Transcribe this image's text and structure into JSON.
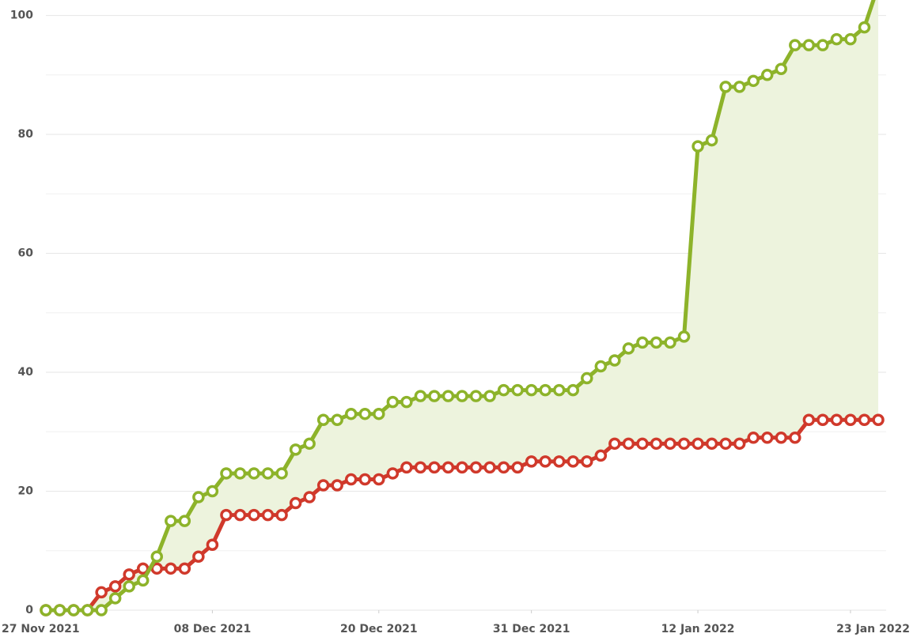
{
  "chart_data": {
    "type": "line",
    "x": [
      "2021-11-26",
      "2021-11-27",
      "2021-11-28",
      "2021-11-29",
      "2021-11-30",
      "2021-12-01",
      "2021-12-02",
      "2021-12-03",
      "2021-12-04",
      "2021-12-05",
      "2021-12-06",
      "2021-12-07",
      "2021-12-08",
      "2021-12-09",
      "2021-12-10",
      "2021-12-11",
      "2021-12-12",
      "2021-12-13",
      "2021-12-14",
      "2021-12-15",
      "2021-12-16",
      "2021-12-17",
      "2021-12-18",
      "2021-12-19",
      "2021-12-20",
      "2021-12-21",
      "2021-12-22",
      "2021-12-23",
      "2021-12-24",
      "2021-12-25",
      "2021-12-26",
      "2021-12-27",
      "2021-12-28",
      "2021-12-29",
      "2021-12-30",
      "2021-12-31",
      "2022-01-01",
      "2022-01-02",
      "2022-01-03",
      "2022-01-04",
      "2022-01-05",
      "2022-01-06",
      "2022-01-07",
      "2022-01-08",
      "2022-01-09",
      "2022-01-10",
      "2022-01-11",
      "2022-01-12",
      "2022-01-13",
      "2022-01-14",
      "2022-01-15",
      "2022-01-16",
      "2022-01-17",
      "2022-01-18",
      "2022-01-19",
      "2022-01-20",
      "2022-01-21",
      "2022-01-22",
      "2022-01-23",
      "2022-01-24",
      "2022-01-25"
    ],
    "series": [
      {
        "color": "#8db32a",
        "values": [
          0,
          0,
          0,
          0,
          0,
          2,
          4,
          5,
          9,
          15,
          15,
          19,
          20,
          23,
          23,
          23,
          23,
          23,
          27,
          28,
          32,
          32,
          33,
          33,
          33,
          35,
          35,
          36,
          36,
          36,
          36,
          36,
          36,
          37,
          37,
          37,
          37,
          37,
          37,
          39,
          41,
          42,
          44,
          45,
          45,
          45,
          46,
          78,
          79,
          88,
          88,
          89,
          90,
          91,
          95,
          95,
          95,
          96,
          96,
          98,
          105
        ]
      },
      {
        "color": "#d0392b",
        "values": [
          0,
          0,
          0,
          0,
          3,
          4,
          6,
          7,
          7,
          7,
          7,
          9,
          11,
          16,
          16,
          16,
          16,
          16,
          18,
          19,
          21,
          21,
          22,
          22,
          22,
          23,
          24,
          24,
          24,
          24,
          24,
          24,
          24,
          24,
          24,
          25,
          25,
          25,
          25,
          25,
          26,
          28,
          28,
          28,
          28,
          28,
          28,
          28,
          28,
          28,
          28,
          29,
          29,
          29,
          29,
          32,
          32,
          32,
          32,
          32,
          32
        ]
      }
    ],
    "fill_between": true,
    "fill_color": "#edf3dd",
    "xlim": [
      "2021-11-26",
      "2022-01-25"
    ],
    "xticks": [
      {
        "value": "2021-11-27",
        "label": "27 Nov 2021"
      },
      {
        "value": "2021-12-08",
        "label": "08 Dec 2021"
      },
      {
        "value": "2021-12-20",
        "label": "20 Dec 2021"
      },
      {
        "value": "2021-12-31",
        "label": "31 Dec 2021"
      },
      {
        "value": "2022-01-12",
        "label": "12 Jan 2022"
      },
      {
        "value": "2022-01-23",
        "label": "23 Jan 2022"
      }
    ],
    "ylim": [
      0,
      102.6
    ],
    "yticks": [
      0,
      20,
      40,
      60,
      80,
      100
    ],
    "minor_yticks": [
      10,
      30,
      50,
      70,
      90
    ],
    "grid": true
  }
}
